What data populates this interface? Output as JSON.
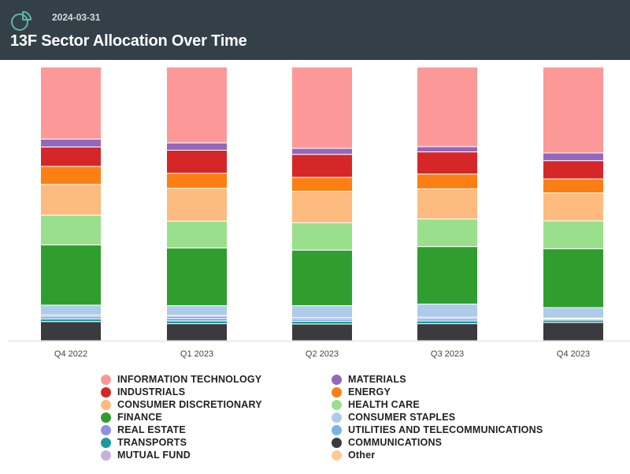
{
  "header": {
    "date": "2024-03-31",
    "title": "13F Sector Allocation Over Time",
    "icon": "pie-chart-icon"
  },
  "colors": {
    "header_bg": "#334048",
    "axis": "#d8dce8"
  },
  "chart_data": {
    "type": "bar",
    "stacked": true,
    "normalized_percent": true,
    "categories": [
      "Q4 2022",
      "Q1 2023",
      "Q2 2023",
      "Q3 2023",
      "Q4 2023"
    ],
    "ylim": [
      0,
      100
    ],
    "grid": false,
    "legend_position": "bottom",
    "series": [
      {
        "name": "COMMUNICATIONS",
        "color": "#3b3b3f",
        "values": [
          7.0,
          6.2,
          6.1,
          6.2,
          6.7
        ]
      },
      {
        "name": "TRANSPORTS",
        "color": "#1c9b9b",
        "values": [
          1.0,
          1.0,
          1.0,
          1.0,
          0.8
        ]
      },
      {
        "name": "UTILITIES AND TELECOMMUNICATIONS",
        "color": "#7ab3e3",
        "values": [
          0.9,
          1.0,
          0.9,
          0.9,
          0.5
        ]
      },
      {
        "name": "REAL ESTATE",
        "color": "#8f90e3",
        "values": [
          0.5,
          0.8,
          0.5,
          0.5,
          0.3
        ]
      },
      {
        "name": "MUTUAL FUND",
        "color": "#c6b3db",
        "values": [
          0.0,
          0.2,
          0.0,
          0.0,
          0.0
        ]
      },
      {
        "name": "CONSUMER STAPLES",
        "color": "#aecbea",
        "values": [
          3.6,
          3.6,
          4.3,
          4.8,
          3.8
        ]
      },
      {
        "name": "FINANCE",
        "color": "#2f9e2f",
        "values": [
          22.0,
          21.1,
          20.3,
          21.0,
          21.5
        ]
      },
      {
        "name": "HEALTH CARE",
        "color": "#9ae08c",
        "values": [
          10.9,
          9.8,
          10.0,
          10.1,
          10.2
        ]
      },
      {
        "name": "CONSUMER DISCRETIONARY",
        "color": "#fdbb7f",
        "values": [
          11.2,
          12.0,
          11.5,
          11.0,
          10.2
        ]
      },
      {
        "name": "ENERGY",
        "color": "#fb7f12",
        "values": [
          6.6,
          5.5,
          5.1,
          5.4,
          5.1
        ]
      },
      {
        "name": "INDUSTRIALS",
        "color": "#d62728",
        "values": [
          7.1,
          8.4,
          8.4,
          8.1,
          6.7
        ]
      },
      {
        "name": "MATERIALS",
        "color": "#9467bd",
        "values": [
          2.9,
          2.7,
          2.2,
          1.9,
          2.8
        ]
      },
      {
        "name": "INFORMATION TECHNOLOGY",
        "color": "#fd9898",
        "values": [
          26.3,
          27.7,
          29.7,
          29.1,
          31.4
        ]
      },
      {
        "name": "Other",
        "color": "#fdc996",
        "values": [
          0,
          0,
          0,
          0,
          0
        ]
      }
    ]
  },
  "legend": {
    "left": [
      {
        "label": "INFORMATION TECHNOLOGY",
        "color": "#fd9898"
      },
      {
        "label": "INDUSTRIALS",
        "color": "#d62728"
      },
      {
        "label": "CONSUMER DISCRETIONARY",
        "color": "#fdbb7f"
      },
      {
        "label": "FINANCE",
        "color": "#2f9e2f"
      },
      {
        "label": "REAL ESTATE",
        "color": "#8f90e3"
      },
      {
        "label": "TRANSPORTS",
        "color": "#1c9b9b"
      },
      {
        "label": "MUTUAL FUND",
        "color": "#c6b3db"
      }
    ],
    "right": [
      {
        "label": "MATERIALS",
        "color": "#9467bd"
      },
      {
        "label": "ENERGY",
        "color": "#fb7f12"
      },
      {
        "label": "HEALTH CARE",
        "color": "#9ae08c"
      },
      {
        "label": "CONSUMER STAPLES",
        "color": "#aecbea"
      },
      {
        "label": "UTILITIES AND TELECOMMUNICATIONS",
        "color": "#7ab3e3"
      },
      {
        "label": "COMMUNICATIONS",
        "color": "#3b3b3f"
      },
      {
        "label": "Other",
        "color": "#fdc996"
      }
    ]
  }
}
